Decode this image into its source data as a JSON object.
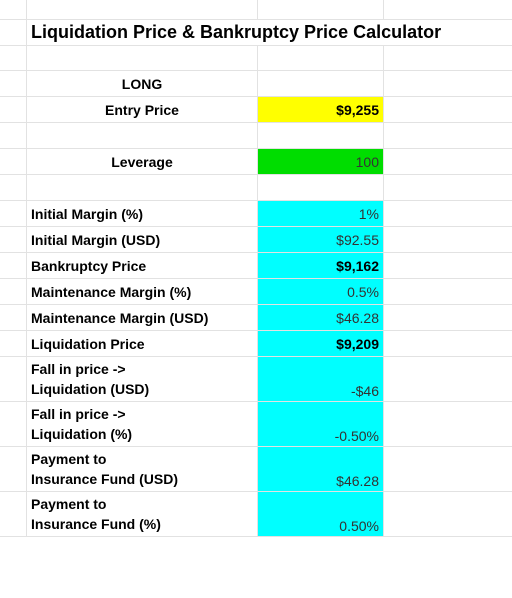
{
  "title": "Liquidation Price & Bankruptcy Price Calculator",
  "side_label": "LONG",
  "entry": {
    "label": "Entry Price",
    "value": "$9,255"
  },
  "leverage": {
    "label": "Leverage",
    "value": "100"
  },
  "metrics": [
    {
      "label": "Initial Margin (%)",
      "value": "1%"
    },
    {
      "label": "Initial Margin (USD)",
      "value": "$92.55"
    },
    {
      "label": "Bankruptcy Price",
      "value": "$9,162"
    },
    {
      "label": "Maintenance Margin (%)",
      "value": "0.5%"
    },
    {
      "label": "Maintenance Margin (USD)",
      "value": "$46.28"
    },
    {
      "label": "Liquidation Price",
      "value": "$9,209"
    },
    {
      "label_line1": "Fall in price ->",
      "label_line2": "Liquidation (USD)",
      "value": "-$46"
    },
    {
      "label_line1": "Fall in price ->",
      "label_line2": "Liquidation (%)",
      "value": "-0.50%"
    },
    {
      "label_line1": "Payment to",
      "label_line2": "Insurance Fund (USD)",
      "value": "$46.28"
    },
    {
      "label_line1": "Payment to",
      "label_line2": "Insurance Fund (%)",
      "value": "0.50%"
    }
  ],
  "colors": {
    "entry_fill": "#ffff00",
    "leverage_fill": "#00dd00",
    "result_fill": "#00ffff"
  }
}
